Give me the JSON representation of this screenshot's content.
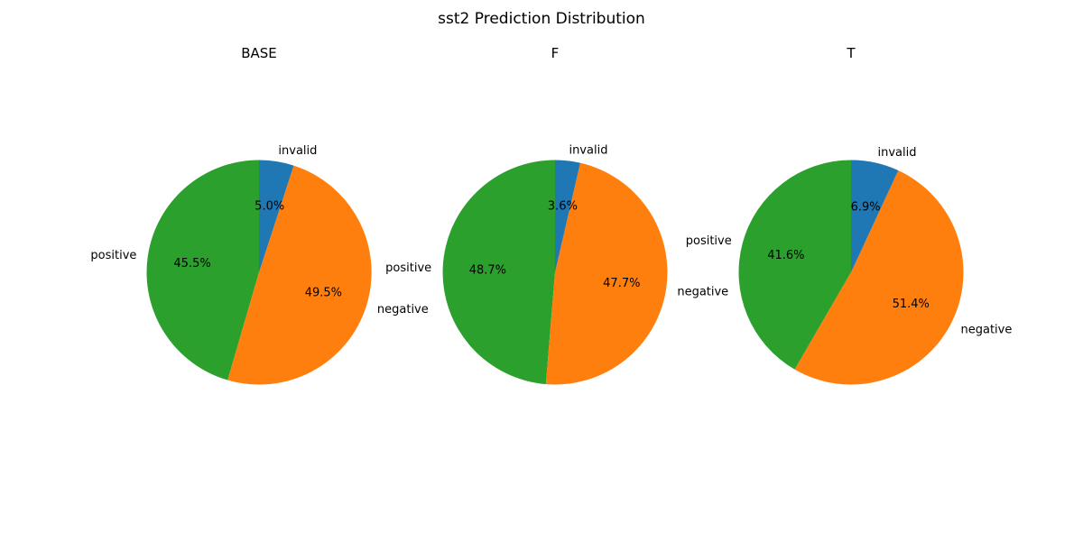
{
  "chart_data": {
    "type": "pie",
    "title": "sst2 Prediction Distribution",
    "colors": {
      "invalid": "#1f77b4",
      "negative": "#ff7f0e",
      "positive": "#2ca02c"
    },
    "start_angle_deg": 90,
    "pies": [
      {
        "title": "BASE",
        "slices": [
          {
            "label": "positive",
            "value": 45.5,
            "pct_label": "45.5%"
          },
          {
            "label": "negative",
            "value": 49.5,
            "pct_label": "49.5%"
          },
          {
            "label": "invalid",
            "value": 5.0,
            "pct_label": "5.0%"
          }
        ]
      },
      {
        "title": "F",
        "slices": [
          {
            "label": "positive",
            "value": 48.7,
            "pct_label": "48.7%"
          },
          {
            "label": "negative",
            "value": 47.7,
            "pct_label": "47.7%"
          },
          {
            "label": "invalid",
            "value": 3.6,
            "pct_label": "3.6%"
          }
        ]
      },
      {
        "title": "T",
        "slices": [
          {
            "label": "positive",
            "value": 41.6,
            "pct_label": "41.6%"
          },
          {
            "label": "negative",
            "value": 51.4,
            "pct_label": "51.4%"
          },
          {
            "label": "invalid",
            "value": 6.9,
            "pct_label": "6.9%"
          }
        ]
      }
    ]
  }
}
